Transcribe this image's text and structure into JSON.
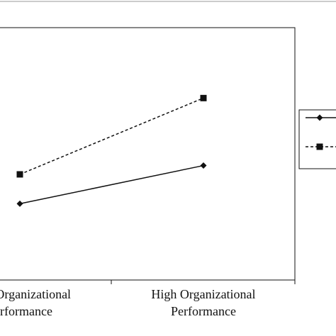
{
  "chart_data": {
    "type": "line",
    "categories": [
      [
        "Low Organizational",
        "Performance"
      ],
      [
        "High Organizational",
        "Performance"
      ]
    ],
    "series": [
      {
        "values": [
          2.8,
          3.45
        ],
        "marker": "diamond",
        "dash": "solid",
        "color": "#111111"
      },
      {
        "values": [
          3.3,
          4.6
        ],
        "marker": "square",
        "dash": "dashed",
        "color": "#111111"
      }
    ],
    "ylim": [
      1.5,
      5.8
    ],
    "grid": false,
    "legend_position": "right",
    "colors": {
      "frame": "#111111",
      "top_rule": "#9a9a9a"
    }
  }
}
